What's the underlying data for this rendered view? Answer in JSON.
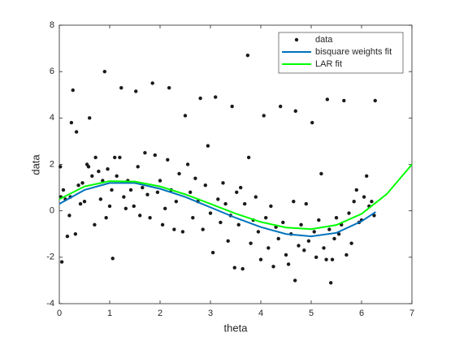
{
  "chart_data": {
    "type": "scatter",
    "xlabel": "theta",
    "ylabel": "data",
    "xlim": [
      0,
      7
    ],
    "xticks": [
      0,
      1,
      2,
      3,
      4,
      5,
      6,
      7
    ],
    "ylim": [
      -4,
      8
    ],
    "yticks": [
      -4,
      -2,
      0,
      2,
      4,
      6,
      8
    ],
    "legend": "top-right",
    "series": [
      {
        "name": "data",
        "type": "scatter",
        "color": "#1a1a1a",
        "x": [
          0.02,
          0.05,
          0.03,
          0.08,
          0.12,
          0.16,
          0.2,
          0.22,
          0.24,
          0.27,
          0.32,
          0.34,
          0.38,
          0.42,
          0.46,
          0.5,
          0.55,
          0.58,
          0.6,
          0.65,
          0.7,
          0.72,
          0.78,
          0.82,
          0.86,
          0.9,
          0.93,
          0.96,
          1.0,
          1.04,
          1.06,
          1.1,
          1.14,
          1.2,
          1.23,
          1.28,
          1.32,
          1.36,
          1.42,
          1.48,
          1.52,
          1.56,
          1.6,
          1.65,
          1.7,
          1.75,
          1.8,
          1.85,
          1.9,
          1.95,
          2.0,
          2.05,
          2.1,
          2.15,
          2.18,
          2.22,
          2.28,
          2.32,
          2.38,
          2.45,
          2.5,
          2.55,
          2.6,
          2.65,
          2.7,
          2.75,
          2.8,
          2.85,
          2.9,
          2.95,
          3.0,
          3.05,
          3.1,
          3.15,
          3.2,
          3.25,
          3.3,
          3.35,
          3.4,
          3.43,
          3.48,
          3.52,
          3.56,
          3.6,
          3.64,
          3.68,
          3.74,
          3.76,
          3.8,
          3.85,
          3.9,
          3.95,
          4.0,
          4.06,
          4.1,
          4.15,
          4.2,
          4.25,
          4.3,
          4.35,
          4.39,
          4.44,
          4.5,
          4.55,
          4.6,
          4.65,
          4.69,
          4.68,
          4.75,
          4.8,
          4.86,
          4.9,
          4.95,
          5.02,
          5.06,
          5.1,
          5.15,
          5.2,
          5.25,
          5.3,
          5.32,
          5.36,
          5.39,
          5.42,
          5.46,
          5.5,
          5.55,
          5.6,
          5.65,
          5.7,
          5.75,
          5.8,
          5.85,
          5.9,
          5.95,
          6.0,
          6.05,
          6.1,
          6.15,
          6.2,
          6.27,
          6.25
        ],
        "values": [
          1.9,
          -2.2,
          0.6,
          0.9,
          0.5,
          -1.1,
          -0.2,
          0.6,
          3.8,
          5.2,
          -1.0,
          3.4,
          1.1,
          0.3,
          1.2,
          0.4,
          2.0,
          1.9,
          4.0,
          1.5,
          -0.6,
          2.3,
          1.7,
          0.5,
          1.3,
          6.0,
          -0.3,
          1.8,
          0.2,
          0.9,
          -2.05,
          2.3,
          1.5,
          2.3,
          5.3,
          0.6,
          0.1,
          1.3,
          0.9,
          0.2,
          5.15,
          1.9,
          -0.2,
          1.0,
          2.5,
          0.7,
          -0.3,
          5.5,
          2.4,
          0.8,
          1.3,
          -0.6,
          0.1,
          2.2,
          5.3,
          0.9,
          -0.8,
          0.4,
          1.6,
          -0.9,
          4.1,
          2.0,
          0.8,
          -0.3,
          1.4,
          0.4,
          4.85,
          -0.8,
          1.1,
          2.8,
          -0.1,
          -1.8,
          4.9,
          0.5,
          -0.5,
          1.2,
          0.3,
          -1.3,
          -0.2,
          4.5,
          -2.45,
          0.8,
          -0.6,
          1.0,
          -2.5,
          0.3,
          6.7,
          2.3,
          -1.4,
          -0.4,
          0.6,
          -0.9,
          -2.1,
          4.1,
          -0.3,
          -1.6,
          0.2,
          -2.4,
          -0.7,
          -1.2,
          4.5,
          -0.5,
          -1.9,
          -2.3,
          -1.0,
          0.4,
          4.3,
          -3.0,
          -1.5,
          -0.6,
          -1.7,
          0.3,
          -1.3,
          3.8,
          -0.9,
          -2.0,
          -0.4,
          1.6,
          -1.6,
          -2.1,
          4.8,
          -0.8,
          -3.1,
          -2.1,
          -1.2,
          -0.3,
          -1.0,
          -0.6,
          4.75,
          -1.9,
          -0.1,
          -1.4,
          0.4,
          0.9,
          -0.5,
          -0.4,
          0.6,
          1.5,
          0.2,
          0.4,
          4.75,
          -0.2
        ]
      },
      {
        "name": "bisquare weights fit",
        "type": "line",
        "color": "#0072bd",
        "x": [
          0,
          0.5,
          1,
          1.5,
          2,
          2.5,
          3,
          3.5,
          4,
          4.5,
          5,
          5.5,
          6,
          6.28
        ],
        "values": [
          0.3,
          0.9,
          1.2,
          1.2,
          0.95,
          0.6,
          0.15,
          -0.3,
          -0.7,
          -1.0,
          -1.1,
          -0.95,
          -0.45,
          -0.05
        ]
      },
      {
        "name": "LAR fit",
        "type": "line",
        "color": "#00ff00",
        "x": [
          0,
          0.5,
          1,
          1.5,
          2,
          2.5,
          3,
          3.5,
          4,
          4.5,
          5,
          5.5,
          6,
          6.5,
          7
        ],
        "values": [
          0.5,
          1.05,
          1.28,
          1.26,
          1.05,
          0.71,
          0.3,
          -0.12,
          -0.48,
          -0.72,
          -0.79,
          -0.61,
          -0.13,
          0.72,
          2.0
        ]
      }
    ]
  }
}
